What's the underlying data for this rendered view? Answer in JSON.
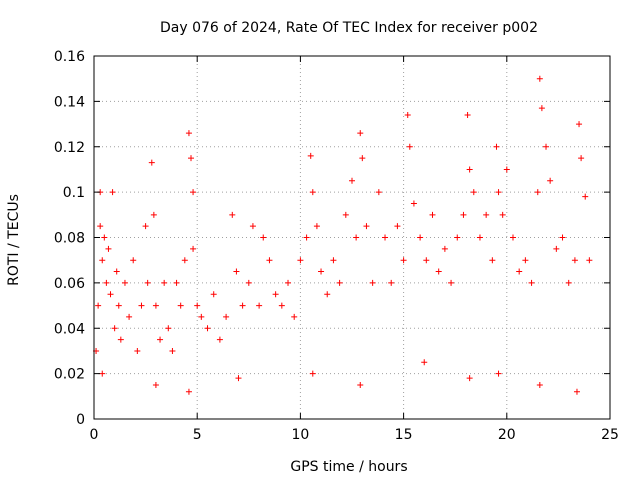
{
  "chart_data": {
    "type": "scatter",
    "title": "Day 076 of 2024, Rate Of TEC Index for receiver p002",
    "xlabel": "GPS time / hours",
    "ylabel": "ROTI / TECUs",
    "xlim": [
      0,
      25
    ],
    "ylim": [
      0,
      0.16
    ],
    "xticks": [
      0,
      5,
      10,
      15,
      20,
      25
    ],
    "xtick_labels": [
      "0",
      "5",
      "10",
      "15",
      "20",
      "25"
    ],
    "yticks": [
      0,
      0.02,
      0.04,
      0.06,
      0.08,
      0.1,
      0.12,
      0.14,
      0.16
    ],
    "ytick_labels": [
      "0",
      "0.02",
      "0.04",
      "0.06",
      "0.08",
      "0.1",
      "0.12",
      "0.14",
      "0.16"
    ],
    "grid": true,
    "marker": "plus",
    "color": "#ff0000",
    "series": [
      {
        "name": "ROTI",
        "x": [
          0.1,
          0.2,
          0.3,
          0.3,
          0.4,
          0.5,
          0.6,
          0.7,
          0.8,
          0.9,
          1.0,
          1.1,
          1.2,
          1.3,
          1.5,
          1.7,
          1.9,
          2.1,
          2.3,
          2.5,
          2.6,
          2.8,
          2.9,
          3.0,
          3.2,
          3.4,
          3.6,
          3.8,
          4.0,
          4.2,
          4.4,
          4.6,
          4.7,
          4.8,
          4.8,
          5.0,
          5.2,
          5.5,
          5.8,
          6.1,
          6.4,
          6.7,
          6.9,
          7.2,
          7.5,
          7.7,
          8.0,
          8.2,
          8.5,
          8.8,
          9.1,
          9.4,
          9.7,
          10.0,
          10.3,
          10.5,
          10.6,
          10.8,
          11.0,
          11.3,
          11.6,
          11.9,
          12.2,
          12.5,
          12.7,
          12.9,
          13.0,
          13.2,
          13.5,
          13.8,
          14.1,
          14.4,
          14.7,
          15.0,
          15.2,
          15.3,
          15.5,
          15.8,
          16.1,
          16.4,
          16.7,
          17.0,
          17.3,
          17.6,
          17.9,
          18.1,
          18.2,
          18.4,
          18.7,
          19.0,
          19.3,
          19.5,
          19.6,
          19.8,
          20.0,
          20.3,
          20.6,
          20.9,
          21.2,
          21.5,
          21.6,
          21.7,
          21.9,
          22.1,
          22.4,
          22.7,
          23.0,
          23.3,
          23.5,
          23.6,
          23.8,
          24.0,
          0.4,
          3.0,
          4.6,
          7.0,
          10.6,
          12.9,
          16.0,
          18.2,
          19.6,
          21.6,
          23.4
        ],
        "y": [
          0.03,
          0.05,
          0.1,
          0.085,
          0.07,
          0.08,
          0.06,
          0.075,
          0.055,
          0.1,
          0.04,
          0.065,
          0.05,
          0.035,
          0.06,
          0.045,
          0.07,
          0.03,
          0.05,
          0.085,
          0.06,
          0.113,
          0.09,
          0.05,
          0.035,
          0.06,
          0.04,
          0.03,
          0.06,
          0.05,
          0.07,
          0.126,
          0.115,
          0.1,
          0.075,
          0.05,
          0.045,
          0.04,
          0.055,
          0.035,
          0.045,
          0.09,
          0.065,
          0.05,
          0.06,
          0.085,
          0.05,
          0.08,
          0.07,
          0.055,
          0.05,
          0.06,
          0.045,
          0.07,
          0.08,
          0.116,
          0.1,
          0.085,
          0.065,
          0.055,
          0.07,
          0.06,
          0.09,
          0.105,
          0.08,
          0.126,
          0.115,
          0.085,
          0.06,
          0.1,
          0.08,
          0.06,
          0.085,
          0.07,
          0.134,
          0.12,
          0.095,
          0.08,
          0.07,
          0.09,
          0.065,
          0.075,
          0.06,
          0.08,
          0.09,
          0.134,
          0.11,
          0.1,
          0.08,
          0.09,
          0.07,
          0.12,
          0.1,
          0.09,
          0.11,
          0.08,
          0.065,
          0.07,
          0.06,
          0.1,
          0.15,
          0.137,
          0.12,
          0.105,
          0.075,
          0.08,
          0.06,
          0.07,
          0.13,
          0.115,
          0.098,
          0.07,
          0.02,
          0.015,
          0.012,
          0.018,
          0.02,
          0.015,
          0.025,
          0.018,
          0.02,
          0.015,
          0.012
        ]
      }
    ]
  }
}
